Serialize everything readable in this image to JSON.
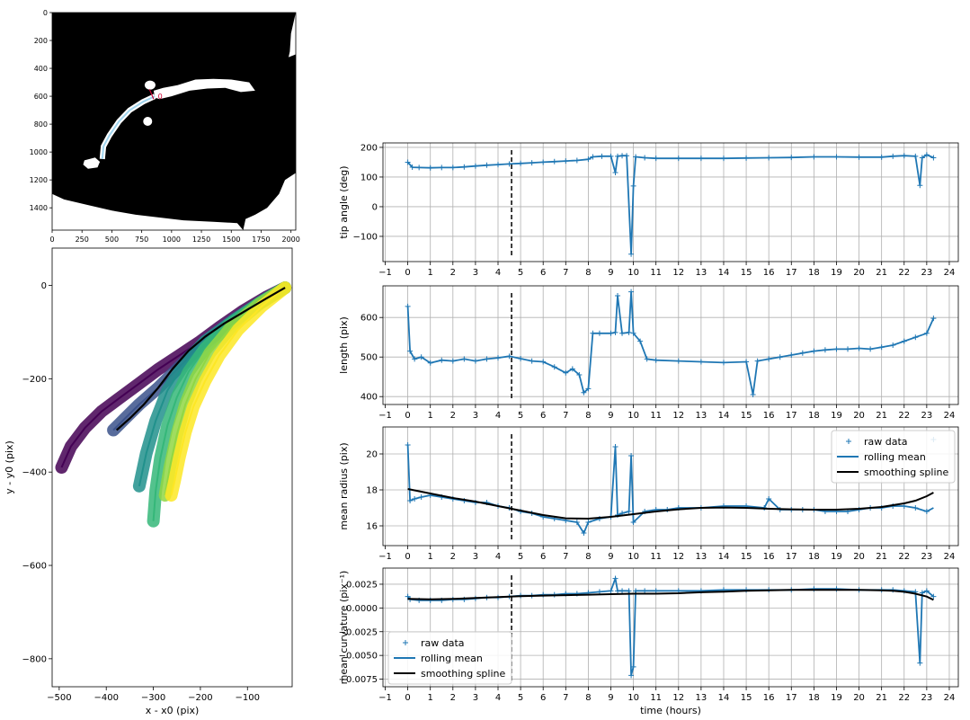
{
  "figure": {
    "colors": {
      "raw": "#1f77b4",
      "mean": "#1f77b4",
      "spline": "#000000",
      "marker_line": "#000000",
      "contour": "#9fd4ee",
      "tip_marker": "#cc0033"
    }
  },
  "image_panel": {
    "x_ticks": [
      "0",
      "250",
      "500",
      "750",
      "1000",
      "1250",
      "1500",
      "1750",
      "2000"
    ],
    "y_ticks": [
      "0",
      "200",
      "400",
      "600",
      "800",
      "1000",
      "1200",
      "1400"
    ],
    "annotation": "0"
  },
  "contour_panel": {
    "xlabel": "x - x0 (pix)",
    "ylabel": "y - y0 (pix)",
    "x_ticks": [
      "−500",
      "−400",
      "−300",
      "−200",
      "−100"
    ],
    "y_ticks": [
      "0",
      "−200",
      "−400",
      "−600",
      "−800"
    ]
  },
  "time_axis": {
    "xlabel": "time (hours)",
    "ticks": [
      "−1",
      "0",
      "1",
      "2",
      "3",
      "4",
      "5",
      "6",
      "7",
      "8",
      "9",
      "10",
      "11",
      "12",
      "13",
      "14",
      "15",
      "16",
      "17",
      "18",
      "19",
      "20",
      "21",
      "22",
      "23",
      "24"
    ]
  },
  "panels": {
    "angle": {
      "ylabel": "tip angle (deg)",
      "y_ticks": [
        "200",
        "100",
        "0",
        "−100"
      ]
    },
    "length": {
      "ylabel": "length (pix)",
      "y_ticks": [
        "600",
        "500",
        "400"
      ]
    },
    "radius": {
      "ylabel": "mean radius (pix)",
      "y_ticks": [
        "20",
        "18",
        "16"
      ]
    },
    "curvature": {
      "ylabel": "mean curvature (pix⁻¹)",
      "y_ticks": [
        "0.0025",
        "0.0000",
        "−0.0025",
        "−0.0050",
        "−0.0075"
      ]
    }
  },
  "legend": {
    "raw": "raw data",
    "mean": "rolling mean",
    "spline": "smoothing spline"
  },
  "chart_data": [
    {
      "type": "line",
      "ylabel": "y - y0 (pix)",
      "xlabel": "x - x0 (pix)",
      "xlim": [
        -515,
        -5
      ],
      "ylim": [
        -860,
        80
      ],
      "colormap": "viridis",
      "series": [
        {
          "x": [
            -20,
            -60,
            -110,
            -160,
            -200,
            -245,
            -290,
            -330,
            -370,
            -410,
            -445,
            -475,
            -495
          ],
          "y": [
            -5,
            -25,
            -55,
            -90,
            -120,
            -150,
            -180,
            -210,
            -240,
            -270,
            -305,
            -345,
            -390
          ]
        },
        {
          "x": [
            -20,
            -60,
            -110,
            -160,
            -210,
            -250,
            -290,
            -330,
            -360,
            -385
          ],
          "y": [
            -5,
            -28,
            -62,
            -100,
            -140,
            -180,
            -220,
            -255,
            -285,
            -310
          ]
        },
        {
          "x": [
            -20,
            -70,
            -130,
            -190,
            -235,
            -270,
            -295,
            -315,
            -330
          ],
          "y": [
            -5,
            -35,
            -75,
            -120,
            -170,
            -225,
            -290,
            -360,
            -430
          ]
        },
        {
          "x": [
            -20,
            -75,
            -140,
            -190,
            -225,
            -250,
            -270,
            -285,
            -295,
            -300
          ],
          "y": [
            -5,
            -38,
            -85,
            -135,
            -185,
            -240,
            -300,
            -370,
            -440,
            -505
          ]
        },
        {
          "x": [
            -20,
            -75,
            -135,
            -180,
            -210,
            -232,
            -250,
            -265,
            -275
          ],
          "y": [
            -5,
            -40,
            -90,
            -145,
            -200,
            -255,
            -320,
            -390,
            -450
          ]
        },
        {
          "x": [
            -20,
            -70,
            -120,
            -160,
            -190,
            -215,
            -232,
            -245,
            -255,
            -262
          ],
          "y": [
            -5,
            -45,
            -95,
            -150,
            -205,
            -260,
            -315,
            -370,
            -420,
            -450
          ]
        }
      ],
      "mean_contour": {
        "x": [
          -20,
          -60,
          -105,
          -150,
          -190,
          -225,
          -260,
          -290,
          -320,
          -350,
          -378
        ],
        "y": [
          -5,
          -28,
          -55,
          -82,
          -110,
          -140,
          -180,
          -220,
          -255,
          -285,
          -310
        ]
      }
    },
    {
      "type": "line",
      "ylabel": "tip angle (deg)",
      "xlabel": "time (hours)",
      "xlim": [
        -1.1,
        24.4
      ],
      "ylim": [
        -185,
        215
      ],
      "marker_x": 4.6,
      "series": [
        {
          "name": "raw data",
          "x": [
            0,
            0.2,
            0.5,
            1,
            1.5,
            2,
            2.5,
            3,
            3.5,
            4,
            4.5,
            5,
            5.5,
            6,
            6.5,
            7,
            7.5,
            8,
            8.2,
            8.6,
            9,
            9.2,
            9.3,
            9.5,
            9.7,
            9.9,
            10,
            10.1,
            10.5,
            11,
            12,
            13,
            14,
            15,
            16,
            17,
            18,
            19,
            20,
            21,
            21.5,
            22,
            22.5,
            22.7,
            22.8,
            23,
            23.3
          ],
          "y": [
            150,
            133,
            132,
            131,
            132,
            132,
            134,
            137,
            140,
            142,
            144,
            146,
            148,
            150,
            152,
            154,
            156,
            160,
            168,
            170,
            170,
            115,
            170,
            172,
            172,
            -160,
            70,
            168,
            165,
            163,
            163,
            163,
            163,
            164,
            165,
            166,
            168,
            168,
            167,
            167,
            170,
            172,
            170,
            72,
            165,
            175,
            165
          ]
        }
      ]
    },
    {
      "type": "line",
      "ylabel": "length (pix)",
      "xlabel": "time (hours)",
      "xlim": [
        -1.1,
        24.4
      ],
      "ylim": [
        380,
        680
      ],
      "marker_x": 4.6,
      "series": [
        {
          "name": "raw data",
          "x": [
            0,
            0.1,
            0.3,
            0.6,
            1,
            1.5,
            2,
            2.5,
            3,
            3.5,
            4,
            4.5,
            5,
            5.5,
            6,
            6.5,
            7,
            7.3,
            7.6,
            7.8,
            8,
            8.2,
            8.5,
            9,
            9.2,
            9.3,
            9.5,
            9.8,
            9.9,
            10,
            10.3,
            10.6,
            11,
            12,
            13,
            14,
            15,
            15.3,
            15.5,
            16,
            16.5,
            17,
            17.5,
            18,
            18.5,
            19,
            19.5,
            20,
            20.5,
            21,
            21.5,
            22,
            22.5,
            23,
            23.3
          ],
          "y": [
            628,
            515,
            495,
            500,
            485,
            492,
            490,
            495,
            490,
            495,
            498,
            502,
            496,
            490,
            488,
            475,
            460,
            470,
            455,
            410,
            420,
            560,
            560,
            560,
            562,
            655,
            560,
            562,
            665,
            560,
            540,
            495,
            492,
            490,
            488,
            486,
            488,
            405,
            490,
            495,
            500,
            505,
            510,
            515,
            518,
            520,
            520,
            522,
            520,
            525,
            530,
            540,
            550,
            560,
            598
          ]
        }
      ]
    },
    {
      "type": "line",
      "ylabel": "mean radius (pix)",
      "xlabel": "time (hours)",
      "xlim": [
        -1.1,
        24.4
      ],
      "ylim": [
        14.9,
        21.5
      ],
      "marker_x": 4.6,
      "series": [
        {
          "name": "raw data",
          "x": [
            0,
            0.1,
            0.3,
            0.6,
            1,
            1.5,
            2,
            2.5,
            3,
            3.5,
            4,
            4.5,
            5,
            5.5,
            6,
            6.5,
            7,
            7.5,
            7.8,
            8,
            8.5,
            9,
            9.2,
            9.3,
            9.5,
            9.8,
            9.9,
            10,
            10.5,
            11,
            11.5,
            12,
            13,
            14,
            15,
            15.8,
            16,
            16.5,
            17,
            17.5,
            18,
            18.5,
            19,
            19.5,
            20,
            20.5,
            21,
            21.5,
            22,
            22.5,
            23,
            23.3
          ],
          "y": [
            20.5,
            17.4,
            17.5,
            17.6,
            17.7,
            17.6,
            17.5,
            17.4,
            17.3,
            17.3,
            17.1,
            17.0,
            16.8,
            16.7,
            16.5,
            16.4,
            16.3,
            16.2,
            15.6,
            16.2,
            16.4,
            16.5,
            20.4,
            16.6,
            16.7,
            16.8,
            19.9,
            16.2,
            16.8,
            16.9,
            16.9,
            17.0,
            17.0,
            17.1,
            17.1,
            17.0,
            17.5,
            16.9,
            16.9,
            16.9,
            16.9,
            16.8,
            16.8,
            16.8,
            16.9,
            17.0,
            17.0,
            17.1,
            17.1,
            17.0,
            16.8,
            20.8
          ]
        },
        {
          "name": "rolling mean",
          "x": [
            0,
            0.1,
            0.3,
            0.6,
            1,
            1.5,
            2,
            2.5,
            3,
            3.5,
            4,
            4.5,
            5,
            5.5,
            6,
            6.5,
            7,
            7.5,
            7.8,
            8,
            8.5,
            9,
            9.2,
            9.3,
            9.5,
            9.8,
            9.9,
            10,
            10.5,
            11,
            11.5,
            12,
            13,
            14,
            15,
            15.8,
            16,
            16.5,
            17,
            17.5,
            18,
            18.5,
            19,
            19.5,
            20,
            20.5,
            21,
            21.5,
            22,
            22.5,
            23,
            23.3
          ],
          "y": [
            20.5,
            17.4,
            17.5,
            17.6,
            17.7,
            17.6,
            17.5,
            17.4,
            17.3,
            17.3,
            17.1,
            17.0,
            16.8,
            16.7,
            16.5,
            16.4,
            16.3,
            16.2,
            15.6,
            16.2,
            16.4,
            16.5,
            20.4,
            16.6,
            16.7,
            16.8,
            19.9,
            16.2,
            16.8,
            16.9,
            16.9,
            17.0,
            17.0,
            17.1,
            17.1,
            17.0,
            17.5,
            16.9,
            16.9,
            16.9,
            16.9,
            16.8,
            16.8,
            16.8,
            16.9,
            17.0,
            17.0,
            17.1,
            17.1,
            17.0,
            16.8,
            17.0
          ]
        },
        {
          "name": "smoothing spline",
          "x": [
            0,
            1,
            2,
            3,
            4,
            5,
            6,
            7,
            8,
            9,
            10,
            11,
            12,
            13,
            14,
            15,
            16,
            17,
            18,
            19,
            20,
            21,
            22,
            22.5,
            23,
            23.3
          ],
          "y": [
            18.05,
            17.8,
            17.55,
            17.35,
            17.1,
            16.85,
            16.6,
            16.42,
            16.4,
            16.5,
            16.65,
            16.8,
            16.92,
            17.0,
            17.02,
            17.0,
            16.95,
            16.92,
            16.9,
            16.9,
            16.95,
            17.05,
            17.25,
            17.4,
            17.65,
            17.85
          ]
        }
      ]
    },
    {
      "type": "line",
      "ylabel": "mean curvature (pix⁻¹)",
      "xlabel": "time (hours)",
      "xlim": [
        -1.1,
        24.4
      ],
      "ylim": [
        -0.0083,
        0.0042
      ],
      "marker_x": 4.6,
      "series": [
        {
          "name": "raw data",
          "x": [
            0,
            0.1,
            0.5,
            1,
            1.5,
            2,
            2.5,
            3,
            3.5,
            4,
            4.5,
            5,
            5.5,
            6,
            6.5,
            7,
            7.5,
            8,
            8.5,
            9,
            9.2,
            9.3,
            9.5,
            9.8,
            9.9,
            10,
            10.1,
            10.5,
            11,
            12,
            13,
            14,
            15,
            16,
            17,
            18,
            19,
            20,
            21,
            21.5,
            22,
            22.5,
            22.7,
            22.8,
            23,
            23.3
          ],
          "y": [
            0.0012,
            0.0009,
            0.0008,
            0.0008,
            0.0008,
            0.0009,
            0.0009,
            0.001,
            0.0011,
            0.0011,
            0.0012,
            0.0013,
            0.0013,
            0.0014,
            0.0014,
            0.0015,
            0.0015,
            0.0016,
            0.0017,
            0.0018,
            0.0031,
            0.0018,
            0.0018,
            0.0018,
            -0.0071,
            -0.0062,
            0.0018,
            0.0018,
            0.0018,
            0.0018,
            0.0018,
            0.0019,
            0.0019,
            0.0019,
            0.0019,
            0.002,
            0.002,
            0.0019,
            0.0019,
            0.0019,
            0.0018,
            0.0017,
            -0.0058,
            0.0016,
            0.0018,
            0.0012
          ]
        },
        {
          "name": "rolling mean",
          "x": [
            0,
            0.1,
            0.5,
            1,
            1.5,
            2,
            2.5,
            3,
            3.5,
            4,
            4.5,
            5,
            5.5,
            6,
            6.5,
            7,
            7.5,
            8,
            8.5,
            9,
            9.2,
            9.3,
            9.5,
            9.8,
            9.9,
            10,
            10.1,
            10.5,
            11,
            12,
            13,
            14,
            15,
            16,
            17,
            18,
            19,
            20,
            21,
            21.5,
            22,
            22.5,
            22.7,
            22.8,
            23,
            23.3
          ],
          "y": [
            0.0012,
            0.0009,
            0.0008,
            0.0008,
            0.0008,
            0.0009,
            0.0009,
            0.001,
            0.0011,
            0.0011,
            0.0012,
            0.0013,
            0.0013,
            0.0014,
            0.0014,
            0.0015,
            0.0015,
            0.0016,
            0.0017,
            0.0018,
            0.0031,
            0.0018,
            0.0018,
            0.0018,
            -0.0071,
            -0.0062,
            0.0018,
            0.0018,
            0.0018,
            0.0018,
            0.0018,
            0.0019,
            0.0019,
            0.0019,
            0.0019,
            0.002,
            0.002,
            0.0019,
            0.0019,
            0.0019,
            0.0018,
            0.0017,
            -0.0058,
            0.0016,
            0.0018,
            0.0012
          ]
        },
        {
          "name": "smoothing spline",
          "x": [
            0,
            1,
            2,
            3,
            4,
            5,
            6,
            7,
            8,
            9,
            10,
            11,
            12,
            13,
            14,
            15,
            16,
            17,
            18,
            19,
            20,
            21,
            21.5,
            22,
            22.5,
            23,
            23.3
          ],
          "y": [
            0.00095,
            0.0009,
            0.00095,
            0.00105,
            0.00115,
            0.00125,
            0.0013,
            0.00135,
            0.0014,
            0.00145,
            0.0015,
            0.0015,
            0.00155,
            0.00165,
            0.00172,
            0.0018,
            0.00185,
            0.0019,
            0.0019,
            0.0019,
            0.0019,
            0.00185,
            0.0018,
            0.0017,
            0.0015,
            0.0012,
            0.00085
          ]
        }
      ]
    }
  ]
}
